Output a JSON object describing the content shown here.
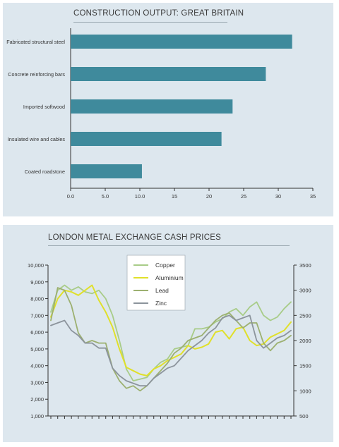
{
  "chart_data": [
    {
      "type": "bar",
      "orientation": "horizontal",
      "title": "CONSTRUCTION OUTPUT: GREAT BRITAIN",
      "categories": [
        "Fabricated structural steel",
        "Concrete reinforcing bars",
        "Imported softwood",
        "Insulated wire and cables",
        "Coated roadstone"
      ],
      "values": [
        32,
        28.2,
        23.4,
        21.8,
        10.3
      ],
      "xlim": [
        0,
        35
      ],
      "xticks": [
        "0.0",
        "5.0",
        "10.0",
        "15",
        "20",
        "25",
        "30",
        "35"
      ],
      "xtick_values": [
        0,
        5,
        10,
        15,
        20,
        25,
        30,
        35
      ],
      "bar_color": "#3f8a9c",
      "grid": false
    },
    {
      "type": "line",
      "title": "LONDON METAL EXCHANGE CASH PRICES",
      "x_count": 36,
      "ylim_left": [
        1000,
        10000
      ],
      "ylim_right": [
        500,
        3500
      ],
      "yticks_left": [
        "1,000",
        "2,000",
        "3,000",
        "4,000",
        "5,000",
        "6,000",
        "7,000",
        "8,000",
        "9,000",
        "10,000"
      ],
      "yticks_right": [
        "500",
        "1000",
        "1500",
        "2000",
        "2500",
        "3000",
        "3500"
      ],
      "legend_position": "top-center",
      "grid": false,
      "series": [
        {
          "name": "Copper",
          "axis": "left",
          "color": "#a8cc88",
          "width": 1.8,
          "values": [
            7200,
            8500,
            8800,
            8500,
            8700,
            8400,
            8300,
            8500,
            8000,
            7000,
            5500,
            3800,
            3100,
            3200,
            3300,
            3800,
            4200,
            4400,
            5000,
            5100,
            5200,
            6200,
            6200,
            6300,
            6600,
            6800,
            7200,
            7400,
            7000,
            7500,
            7800,
            7000,
            6700,
            6900,
            7400,
            7800
          ]
        },
        {
          "name": "Aluminium",
          "axis": "left",
          "color": "#e0e02a",
          "width": 2,
          "values": [
            6900,
            8000,
            8500,
            8400,
            8200,
            8500,
            8800,
            7900,
            7200,
            6300,
            5000,
            3900,
            3700,
            3500,
            3400,
            3800,
            4000,
            4300,
            4500,
            4700,
            5200,
            5000,
            5100,
            5300,
            6000,
            6100,
            5600,
            6200,
            6300,
            5500,
            5200,
            5300,
            5700,
            5900,
            6100,
            6600
          ]
        },
        {
          "name": "Lead",
          "axis": "right",
          "color": "#9cb070",
          "width": 1.8,
          "values": [
            2400,
            3050,
            3000,
            2700,
            2150,
            1950,
            2000,
            1950,
            1950,
            1450,
            1200,
            1050,
            1100,
            1000,
            1100,
            1250,
            1400,
            1550,
            1750,
            1850,
            2000,
            2050,
            2100,
            2250,
            2400,
            2500,
            2550,
            2400,
            2250,
            2350,
            2350,
            1950,
            1800,
            1950,
            2000,
            2100
          ]
        },
        {
          "name": "Zinc",
          "axis": "right",
          "color": "#8c949c",
          "width": 1.8,
          "values": [
            2300,
            2350,
            2400,
            2200,
            2100,
            1950,
            1950,
            1850,
            1850,
            1450,
            1300,
            1200,
            1150,
            1100,
            1100,
            1250,
            1350,
            1450,
            1500,
            1650,
            1800,
            1900,
            2000,
            2150,
            2250,
            2450,
            2500,
            2400,
            2450,
            2500,
            2000,
            1850,
            1950,
            2050,
            2100,
            2200
          ]
        }
      ]
    }
  ]
}
